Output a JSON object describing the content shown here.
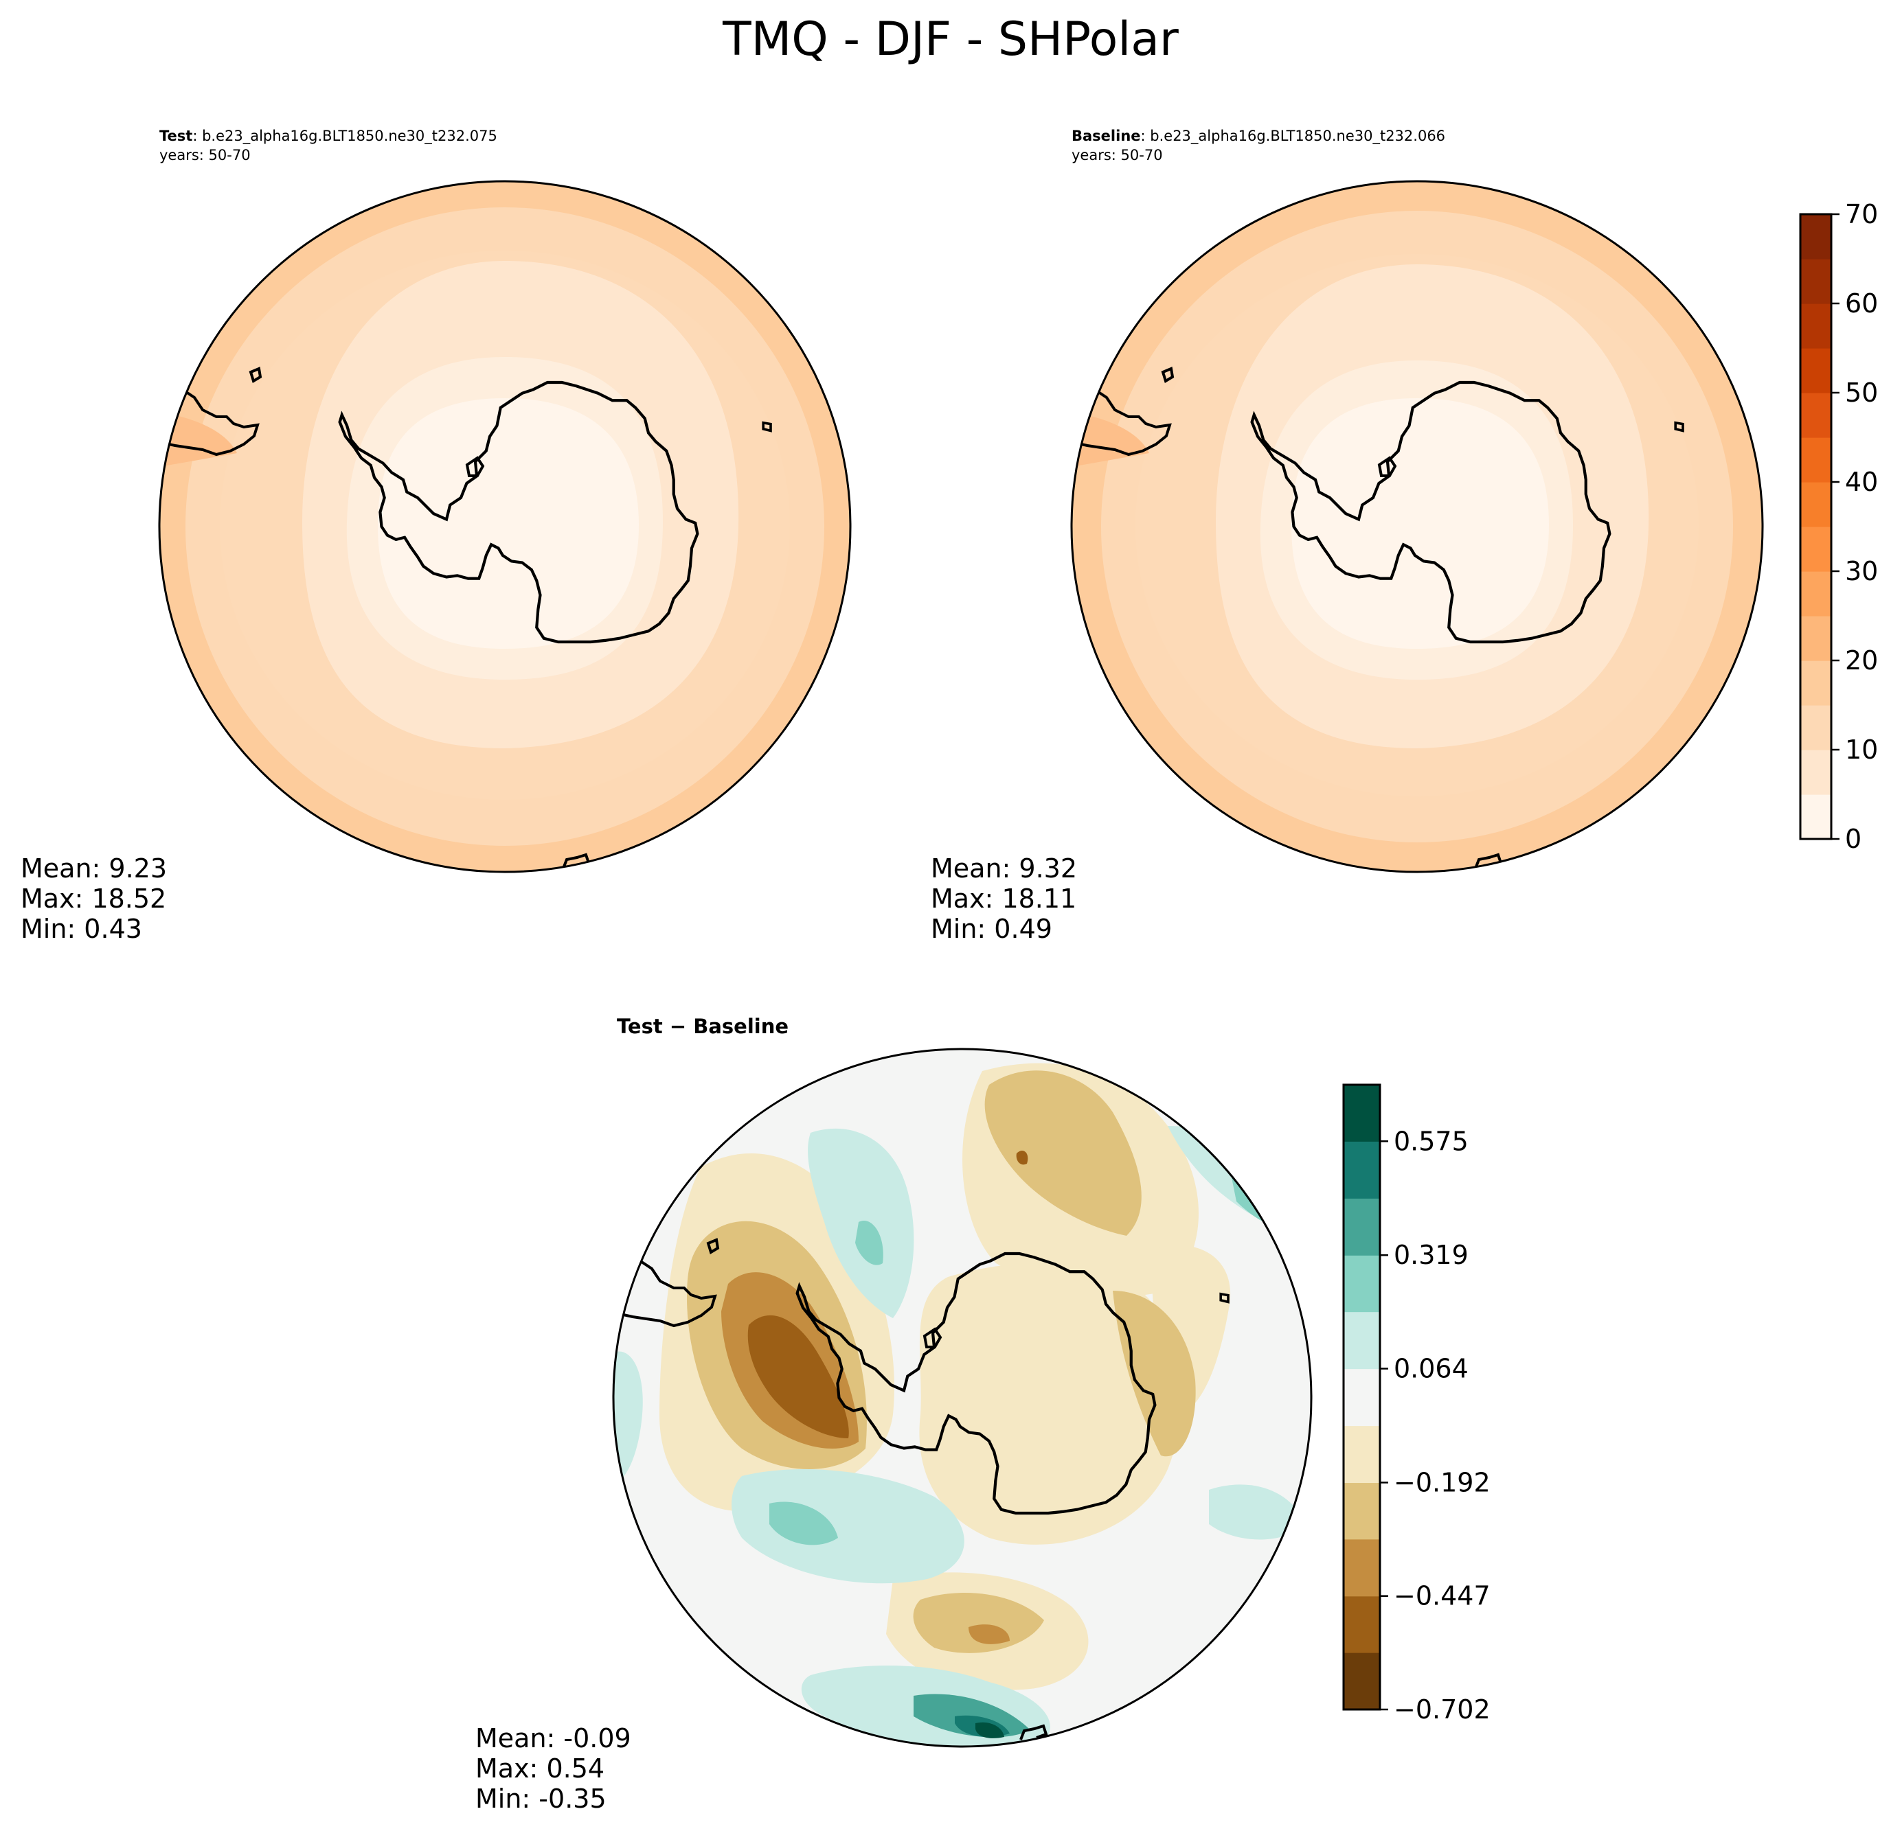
{
  "figure": {
    "title": "TMQ - DJF - SHPolar"
  },
  "panels": {
    "test": {
      "label": "Test",
      "case": ": b.e23_alpha16g.BLT1850.ne30_t232.075",
      "years": "years: 50-70",
      "stats": {
        "mean": "Mean:  9.23",
        "max": "Max: 18.52",
        "min": "Min:  0.43"
      }
    },
    "baseline": {
      "label": "Baseline",
      "case": ": b.e23_alpha16g.BLT1850.ne30_t232.066",
      "years": "years: 50-70",
      "stats": {
        "mean": "Mean:  9.32",
        "max": "Max: 18.11",
        "min": "Min:  0.49"
      }
    },
    "diff": {
      "title": "Test − Baseline",
      "stats": {
        "mean": "Mean: -0.09",
        "max": "Max:  0.54",
        "min": "Min: -0.35"
      }
    }
  },
  "chart_data": [
    {
      "type": "heatmap",
      "projection": "south-polar-stereographic",
      "title": "Test",
      "ring_levels": [
        17.5,
        15,
        12.5,
        10,
        7.5,
        5
      ],
      "mean": 9.23,
      "max": 18.52,
      "min": 0.43
    },
    {
      "type": "heatmap",
      "projection": "south-polar-stereographic",
      "title": "Baseline",
      "ring_levels": [
        17.5,
        15,
        12.5,
        10,
        7.5,
        5
      ],
      "mean": 9.32,
      "max": 18.11,
      "min": 0.49
    },
    {
      "type": "colorbar",
      "range": [
        0,
        70
      ],
      "levels": [
        0,
        5,
        10,
        15,
        20,
        25,
        30,
        35,
        40,
        45,
        50,
        55,
        60,
        65,
        70
      ],
      "tick_values": [
        0,
        10,
        20,
        30,
        40,
        50,
        60,
        70
      ],
      "tick_labels": [
        "0",
        "10",
        "20",
        "30",
        "40",
        "50",
        "60",
        "70"
      ],
      "colors": [
        "#fff5eb",
        "#fee6ce",
        "#fdd9b5",
        "#fdcc9c",
        "#fdb77a",
        "#fda55d",
        "#fd9141",
        "#f77f2a",
        "#ef6a1a",
        "#e05410",
        "#cb4103",
        "#b33603",
        "#9c2e04",
        "#862605"
      ]
    },
    {
      "type": "heatmap",
      "projection": "south-polar-stereographic",
      "title": "Test − Baseline",
      "mean": -0.09,
      "max": 0.54,
      "min": -0.35
    },
    {
      "type": "colorbar",
      "range": [
        -0.702,
        0.702
      ],
      "levels": [
        -0.702,
        -0.574,
        -0.447,
        -0.319,
        -0.192,
        -0.064,
        0.064,
        0.192,
        0.319,
        0.447,
        0.575,
        0.702
      ],
      "tick_values": [
        -0.702,
        -0.447,
        -0.192,
        0.064,
        0.319,
        0.575
      ],
      "tick_labels": [
        "−0.702",
        "−0.447",
        "−0.192",
        "0.064",
        "0.319",
        "0.575"
      ],
      "colors": [
        "#6b3d0a",
        "#9c5f16",
        "#c48d40",
        "#dfc27d",
        "#f5e8c4",
        "#f4f5f4",
        "#c9ebe5",
        "#86d2c3",
        "#46a596",
        "#157a70",
        "#00513f"
      ]
    }
  ]
}
